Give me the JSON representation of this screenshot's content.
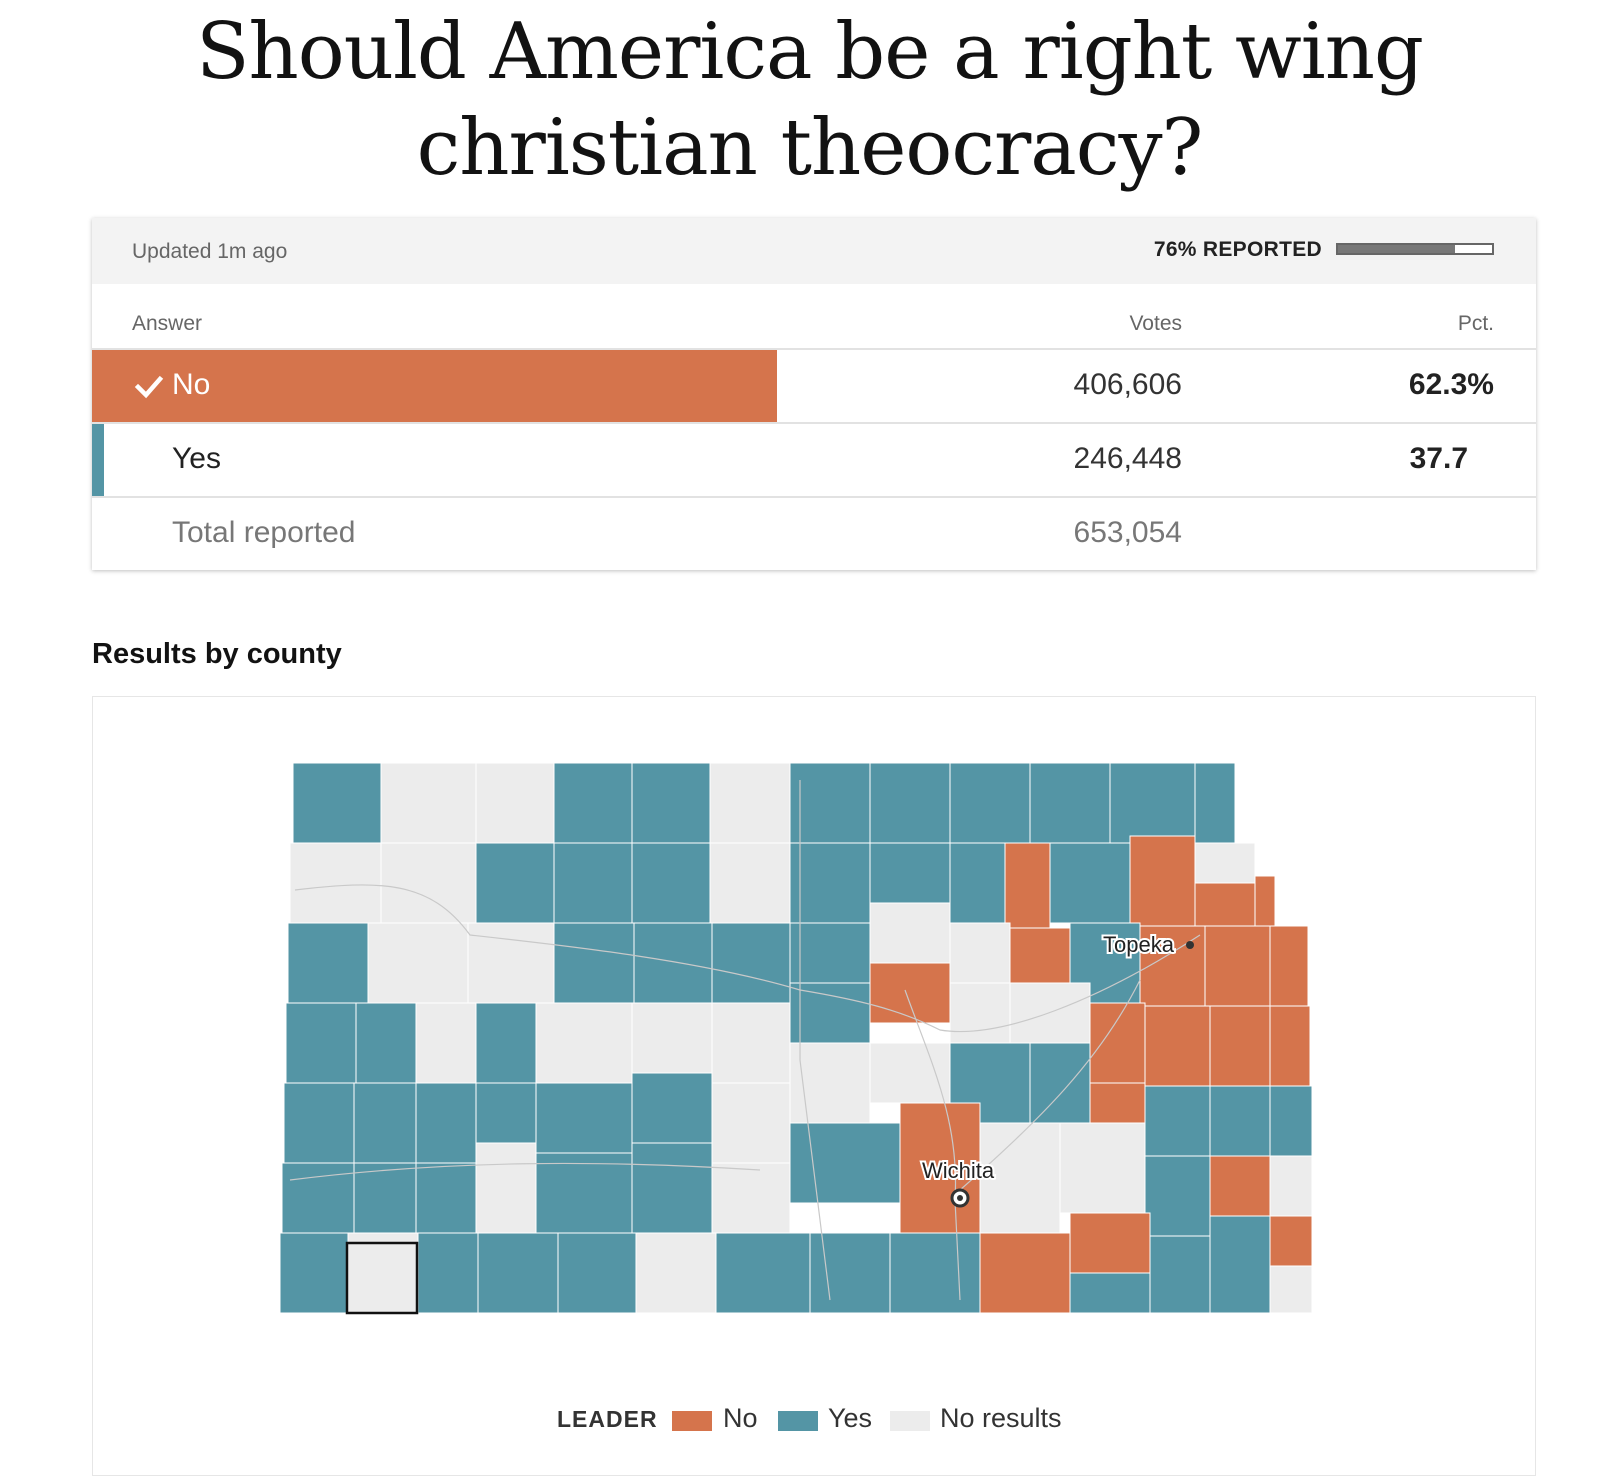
{
  "headline": {
    "line1": "Should America be a right wing",
    "line2": "christian theocracy?"
  },
  "results": {
    "updated": "Updated 1m ago",
    "reported_label": "76% REPORTED",
    "reported_fraction": 0.76,
    "columns": {
      "answer": "Answer",
      "votes": "Votes",
      "pct": "Pct."
    },
    "rows": [
      {
        "answer": "No",
        "votes": "406,606",
        "pct": "62.3%",
        "winner": true,
        "color": "#d5744c",
        "share": 0.623
      },
      {
        "answer": "Yes",
        "votes": "246,448",
        "pct": "37.7",
        "winner": false,
        "color": "#5495a5",
        "share": 0.377
      }
    ],
    "total_label": "Total reported",
    "total_votes": "653,054"
  },
  "map": {
    "section_title": "Results by county",
    "colors": {
      "no": "#d5744c",
      "yes": "#5495a5",
      "none": "#ececec"
    },
    "cities": [
      {
        "name": "Topeka",
        "kind": "dot"
      },
      {
        "name": "Wichita",
        "kind": "ring"
      }
    ],
    "legend": {
      "title": "LEADER",
      "items": [
        {
          "label": "No",
          "color": "#d5744c"
        },
        {
          "label": "Yes",
          "color": "#5495a5"
        },
        {
          "label": "No results",
          "color": "#ececec"
        }
      ]
    }
  }
}
